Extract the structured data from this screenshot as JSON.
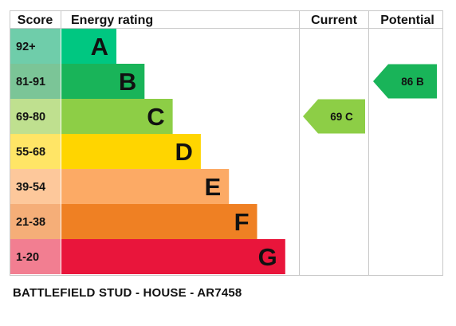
{
  "headers": {
    "score": "Score",
    "energy_rating": "Energy rating",
    "current": "Current",
    "potential": "Potential"
  },
  "chart_data": {
    "type": "bar",
    "categories": [
      "A",
      "B",
      "C",
      "D",
      "E",
      "F",
      "G"
    ],
    "ranges": [
      "92+",
      "81-91",
      "69-80",
      "55-68",
      "39-54",
      "21-38",
      "1-20"
    ],
    "colors": [
      "#00c781",
      "#19b459",
      "#8dce46",
      "#ffd500",
      "#fcaa65",
      "#ef8023",
      "#e9153b"
    ],
    "range_colors": [
      "#6fcdaa",
      "#7bc597",
      "#bfe08f",
      "#ffe566",
      "#fdc89b",
      "#f5ae78",
      "#f27e91"
    ],
    "current": {
      "value": 69,
      "band": "C",
      "label": "69  C",
      "color": "#8dce46"
    },
    "potential": {
      "value": 86,
      "band": "B",
      "label": "86  B",
      "color": "#19b459"
    }
  },
  "footer": "BATTLEFIELD STUD - HOUSE - AR7458"
}
